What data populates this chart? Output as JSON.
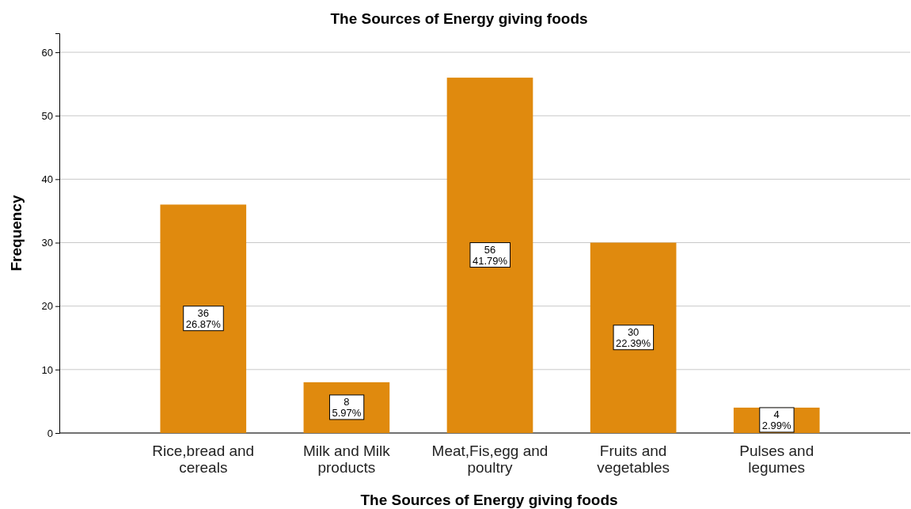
{
  "chart_data": {
    "type": "bar",
    "title": "The Sources of Energy giving foods",
    "xlabel": "The Sources of Energy giving foods",
    "ylabel": "Frequency",
    "categories": [
      "Rice,bread and cereals",
      "Milk and Milk products",
      "Meat,Fis,egg and poultry",
      "Fruits and vegetables",
      "Pulses and legumes"
    ],
    "values": [
      36,
      8,
      56,
      30,
      4
    ],
    "value_labels": [
      "36\n26.87%",
      "8\n5.97%",
      "56\n41.79%",
      "30\n22.39%",
      "4\n2.99%"
    ],
    "color": "#e08a0e",
    "ylim": [
      0,
      63
    ],
    "yticks": [
      0,
      10,
      20,
      30,
      40,
      50,
      60
    ],
    "grid": "y"
  }
}
